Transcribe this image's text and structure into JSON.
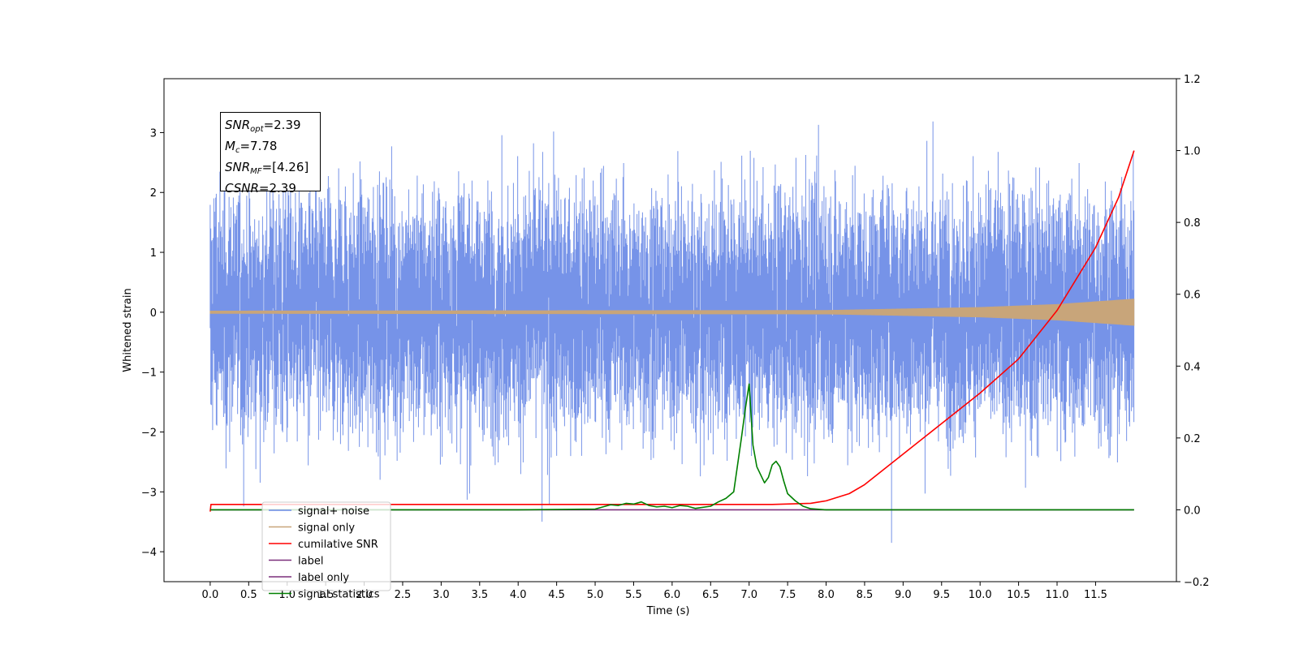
{
  "chart_data": {
    "type": "line",
    "title": "",
    "xlabel": "Time (s)",
    "ylabel": "Whitened strain",
    "xlim": [
      -0.6,
      12.55
    ],
    "ylim": [
      -4.5,
      3.9
    ],
    "y2lim": [
      -0.2,
      1.2
    ],
    "x_ticks": [
      "0.0",
      "0.5",
      "1.0",
      "1.5",
      "2.0",
      "2.5",
      "3.0",
      "3.5",
      "4.0",
      "4.5",
      "5.0",
      "5.5",
      "6.0",
      "6.5",
      "7.0",
      "7.5",
      "8.0",
      "8.5",
      "9.0",
      "9.5",
      "10.0",
      "10.5",
      "11.0",
      "11.5"
    ],
    "y_ticks": [
      "3",
      "2",
      "1",
      "0",
      "−1",
      "−2",
      "−3",
      "−4"
    ],
    "y2_ticks": [
      "1.2",
      "1.0",
      "0.8",
      "0.6",
      "0.4",
      "0.2",
      "0.0",
      "−0.2"
    ],
    "legend_position": "lower-left",
    "series": [
      {
        "name": "signal+ noise",
        "color": "#6a8ae6",
        "axis": "left",
        "kind": "noise band",
        "x_range": [
          0.0,
          12.0
        ],
        "typical_range": [
          -2.0,
          2.0
        ],
        "extremes": [
          -4.1,
          3.55
        ]
      },
      {
        "name": "signal only",
        "color": "#c8a57a",
        "axis": "left",
        "kind": "chirp",
        "envelope": {
          "x": [
            0,
            8,
            10,
            11,
            12
          ],
          "amp": [
            0.02,
            0.03,
            0.08,
            0.13,
            0.22
          ]
        }
      },
      {
        "name": "cumilative SNR",
        "color": "#ff0000",
        "axis": "right",
        "x": [
          0.0,
          0.01,
          7.3,
          7.8,
          8.0,
          8.3,
          8.5,
          9.0,
          9.5,
          10.0,
          10.5,
          11.0,
          11.5,
          11.8,
          12.0
        ],
        "y": [
          -0.005,
          0.015,
          0.015,
          0.018,
          0.025,
          0.045,
          0.07,
          0.155,
          0.24,
          0.325,
          0.42,
          0.555,
          0.73,
          0.87,
          1.0
        ]
      },
      {
        "name": "label",
        "color": "#7b2f7b",
        "axis": "right",
        "x": [
          0.0,
          7.0,
          7.001,
          12.0
        ],
        "y": [
          0.0,
          0.0,
          0.0,
          0.0
        ]
      },
      {
        "name": "label only",
        "color": "#7b2f7b",
        "axis": "right",
        "x": [],
        "y": []
      },
      {
        "name": "signal statistics",
        "color": "#008000",
        "axis": "right",
        "x": [
          0.0,
          4.0,
          5.0,
          5.2,
          5.3,
          5.4,
          5.5,
          5.6,
          5.7,
          5.8,
          5.9,
          6.0,
          6.1,
          6.2,
          6.3,
          6.5,
          6.6,
          6.7,
          6.8,
          6.9,
          6.95,
          7.0,
          7.05,
          7.1,
          7.2,
          7.25,
          7.3,
          7.35,
          7.4,
          7.45,
          7.5,
          7.6,
          7.7,
          7.8,
          8.0,
          9.0,
          10.0,
          11.0,
          11.5,
          12.0
        ],
        "y": [
          0.0,
          0.0,
          0.002,
          0.014,
          0.012,
          0.018,
          0.016,
          0.022,
          0.012,
          0.008,
          0.01,
          0.006,
          0.012,
          0.01,
          0.004,
          0.01,
          0.022,
          0.032,
          0.05,
          0.2,
          0.28,
          0.35,
          0.18,
          0.12,
          0.075,
          0.09,
          0.125,
          0.135,
          0.12,
          0.08,
          0.045,
          0.025,
          0.01,
          0.003,
          0.0,
          0.0,
          0.0,
          0.0,
          0.0,
          0.0
        ]
      }
    ],
    "annotations": {
      "snr_opt": {
        "sym": "SNR",
        "sub": "opt",
        "value": "=2.39"
      },
      "mc": {
        "sym": "M",
        "sub": "c",
        "value": "=7.78"
      },
      "snr_mf": {
        "sym": "SNR",
        "sub": "MF",
        "value": "=[4.26]"
      },
      "csnr": {
        "sym": "CSNR",
        "value": "=2.39"
      }
    }
  }
}
